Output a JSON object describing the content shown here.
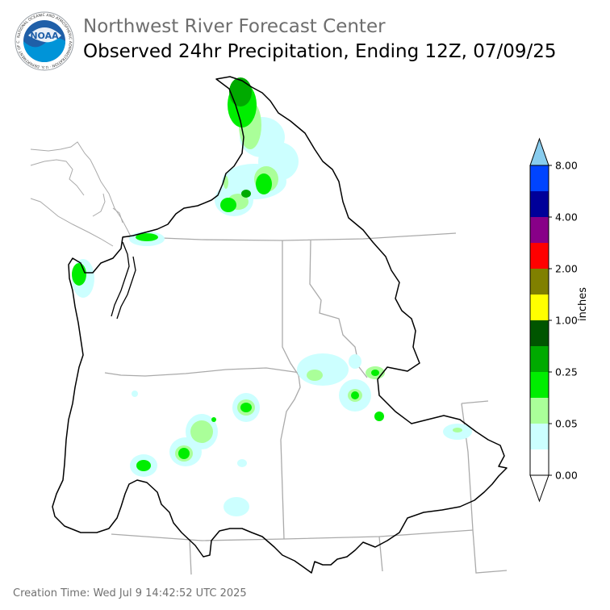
{
  "header": {
    "agency": "Northwest River Forecast Center",
    "product": "Observed 24hr Precipitation, Ending 12Z, 07/09/25"
  },
  "logo": {
    "icon": "noaa-logo-icon",
    "text": "NOAA",
    "ring_text": "NATIONAL OCEANIC AND ATMOSPHERIC ADMINISTRATION · U.S. DEPARTMENT OF COMMERCE"
  },
  "legend": {
    "unit": "inches",
    "tick_labels": [
      "0.00",
      "0.05",
      "0.25",
      "1.00",
      "2.00",
      "4.00",
      "8.00"
    ],
    "colors": [
      "#ffffff",
      "#ccffff",
      "#aaff99",
      "#00ee00",
      "#00aa00",
      "#005500",
      "#ffff00",
      "#808000",
      "#ff0000",
      "#880088",
      "#000099",
      "#0044ff",
      "#88ccee"
    ]
  },
  "footer": {
    "creation_time": "Creation Time: Wed Jul 9 14:42:52 UTC 2025"
  }
}
